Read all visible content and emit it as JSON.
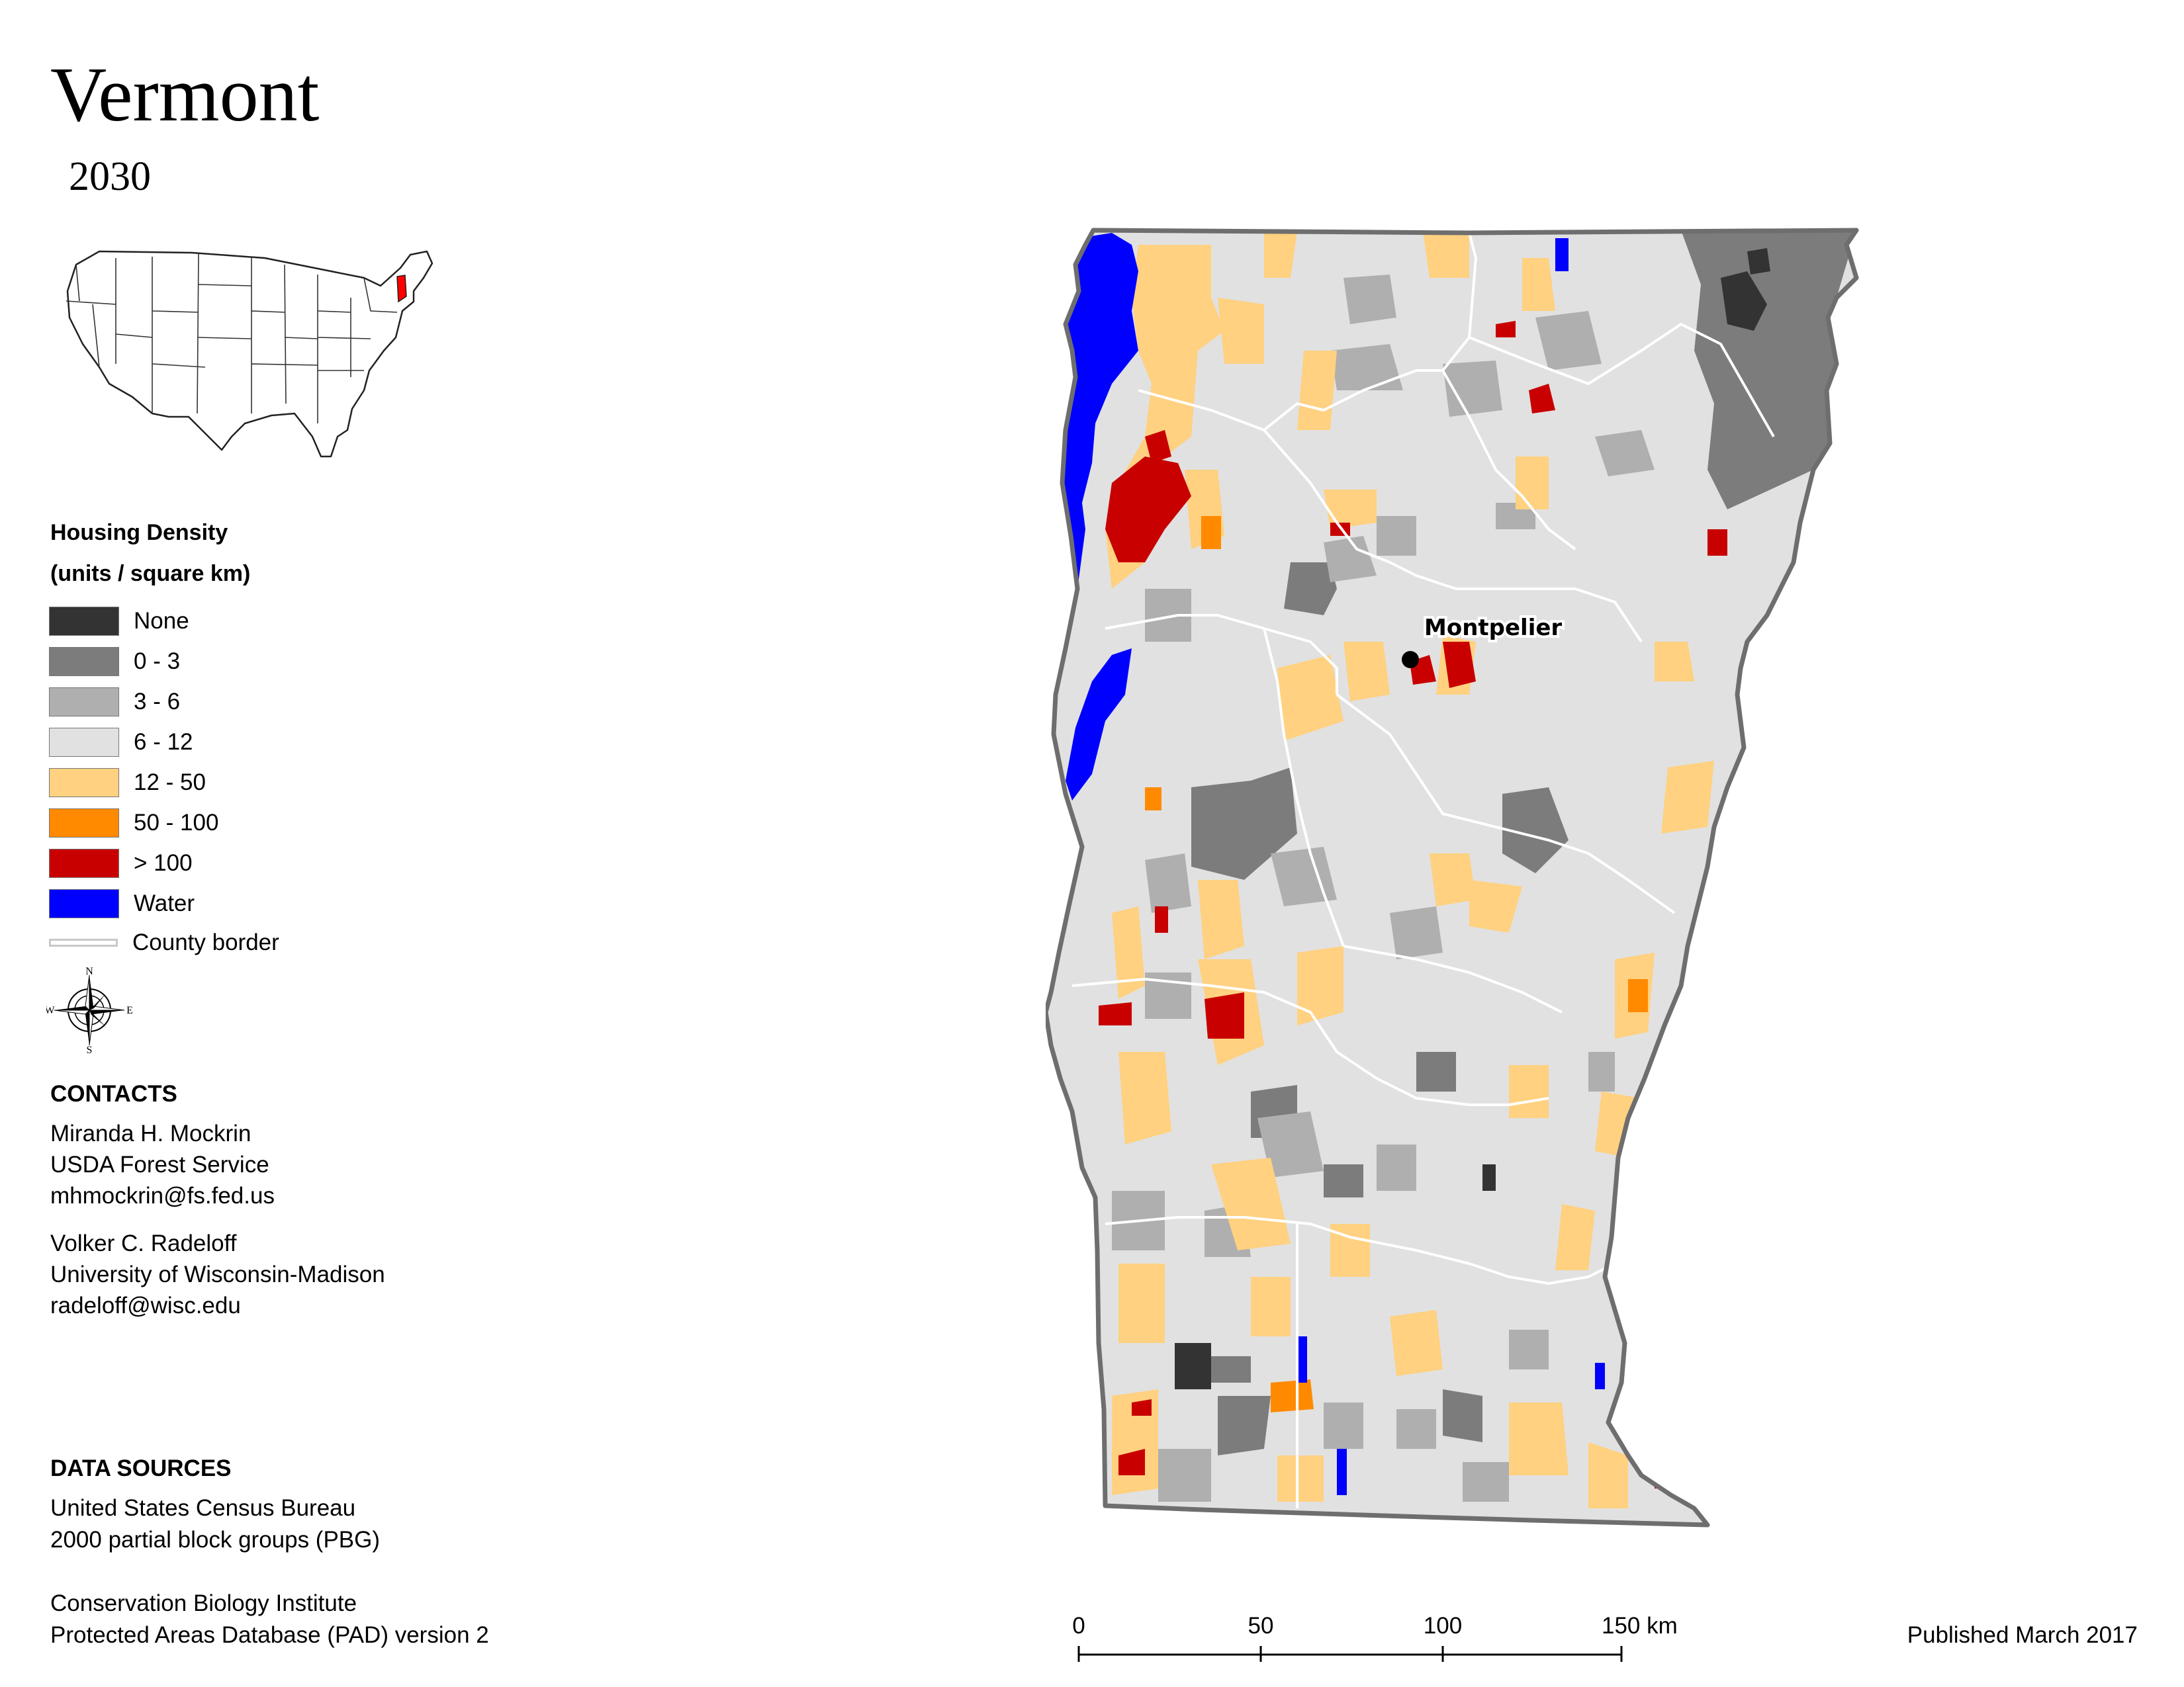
{
  "title": "Vermont",
  "year": "2030",
  "legend": {
    "title_line1": "Housing Density",
    "title_line2": "(units / square km)",
    "items": [
      {
        "label": "None",
        "color": "#333333"
      },
      {
        "label": "0 - 3",
        "color": "#7c7c7c"
      },
      {
        "label": "3 - 6",
        "color": "#afafaf"
      },
      {
        "label": "6 - 12",
        "color": "#e1e1e1"
      },
      {
        "label": "12 - 50",
        "color": "#ffd180"
      },
      {
        "label": "50 - 100",
        "color": "#ff8a00"
      },
      {
        "label": "> 100",
        "color": "#c80000"
      },
      {
        "label": "Water",
        "color": "#0000ff"
      }
    ],
    "county_border_label": "County border"
  },
  "compass": {
    "n": "N",
    "s": "S",
    "e": "E",
    "w": "W"
  },
  "contacts": {
    "heading": "CONTACTS",
    "people": [
      {
        "name": "Miranda H. Mockrin",
        "org": "USDA Forest Service",
        "email": "mhmockrin@fs.fed.us"
      },
      {
        "name": "Volker C. Radeloff",
        "org": "University of Wisconsin-Madison",
        "email": "radeloff@wisc.edu"
      }
    ]
  },
  "data_sources": {
    "heading": "DATA SOURCES",
    "lines": [
      "United States Census Bureau",
      "2000 partial block groups (PBG)",
      "Conservation Biology Institute",
      "Protected Areas Database (PAD) version 2"
    ]
  },
  "map": {
    "city_label": "Montpelier"
  },
  "scale_bar": {
    "ticks": [
      "0",
      "50",
      "100",
      "150 km"
    ]
  },
  "published": "Published March 2017"
}
